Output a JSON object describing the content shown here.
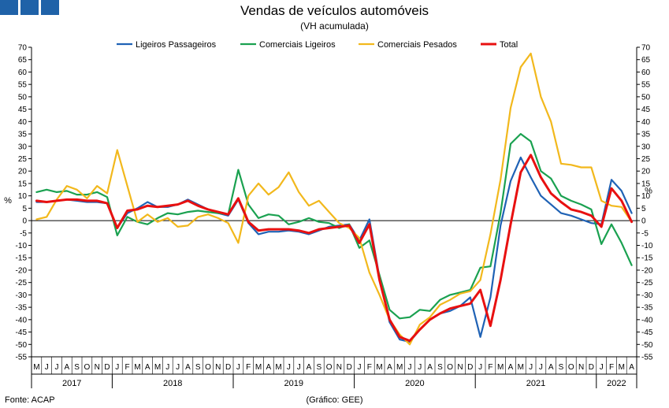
{
  "header": {
    "title": "Vendas de veículos automóveis",
    "subtitle": "(VH acumulada)"
  },
  "footer": {
    "source": "Fonte: ACAP",
    "credit": "(Gráfico: GEE)"
  },
  "chart_data": {
    "type": "line",
    "title": "Vendas de veículos automóveis",
    "subtitle": "(VH acumulada)",
    "ylabel": "%",
    "ylim": [
      -55,
      70
    ],
    "ytick_step": 5,
    "grid": false,
    "legend_position": "top-center",
    "x": [
      "M",
      "J",
      "J",
      "A",
      "S",
      "O",
      "N",
      "D",
      "J",
      "F",
      "M",
      "A",
      "M",
      "J",
      "J",
      "A",
      "S",
      "O",
      "N",
      "D",
      "J",
      "F",
      "M",
      "A",
      "M",
      "J",
      "J",
      "A",
      "S",
      "O",
      "N",
      "D",
      "J",
      "F",
      "M",
      "A",
      "M",
      "J",
      "J",
      "A",
      "S",
      "O",
      "N",
      "D",
      "J",
      "F",
      "M",
      "A",
      "M",
      "J",
      "J",
      "A",
      "S",
      "O",
      "N",
      "D",
      "J",
      "F",
      "M",
      "A"
    ],
    "years": [
      {
        "label": "2017",
        "start": 0,
        "count": 8
      },
      {
        "label": "2018",
        "start": 8,
        "count": 12
      },
      {
        "label": "2019",
        "start": 20,
        "count": 12
      },
      {
        "label": "2020",
        "start": 32,
        "count": 12
      },
      {
        "label": "2021",
        "start": 44,
        "count": 12
      },
      {
        "label": "2022",
        "start": 56,
        "count": 4
      }
    ],
    "series": [
      {
        "name": "Ligeiros Passageiros",
        "color": "#1f62b5",
        "values": [
          7.5,
          7.5,
          8.0,
          8.5,
          8.0,
          7.5,
          7.5,
          7.0,
          -3.0,
          3.0,
          5.0,
          7.5,
          5.5,
          5.5,
          6.5,
          8.5,
          6.5,
          4.5,
          3.0,
          2.0,
          8.5,
          -1.0,
          -5.5,
          -4.5,
          -4.5,
          -4.0,
          -4.5,
          -5.5,
          -4.0,
          -2.5,
          -2.0,
          -1.5,
          -8.0,
          0.5,
          -23.0,
          -41.0,
          -48.0,
          -49.0,
          -44.0,
          -40.0,
          -37.5,
          -36.5,
          -34.5,
          -31.0,
          -47.0,
          -31.0,
          -2.0,
          16.0,
          25.5,
          17.5,
          10.0,
          6.5,
          3.0,
          2.0,
          0.5,
          -1.0,
          -1.5,
          16.5,
          12.0,
          3.0
        ]
      },
      {
        "name": "Comerciais Ligeiros",
        "color": "#1aa150",
        "values": [
          11.5,
          12.5,
          11.5,
          12.0,
          10.5,
          10.5,
          11.5,
          9.5,
          -6.0,
          1.5,
          -0.5,
          -1.5,
          1.0,
          3.0,
          2.5,
          3.5,
          4.0,
          3.5,
          3.0,
          2.5,
          20.5,
          6.5,
          1.0,
          2.5,
          2.0,
          -1.5,
          -0.5,
          1.0,
          -0.5,
          -1.0,
          -3.0,
          -1.5,
          -11.0,
          -8.0,
          -22.0,
          -36.0,
          -39.5,
          -39.0,
          -36.0,
          -36.5,
          -32.0,
          -30.0,
          -29.0,
          -28.0,
          -19.0,
          -18.5,
          3.0,
          31.0,
          35.0,
          32.0,
          20.0,
          17.0,
          10.0,
          8.0,
          6.5,
          4.5,
          -9.5,
          -1.5,
          -9.0,
          -18.0
        ]
      },
      {
        "name": "Comerciais Pesados",
        "color": "#f2b81c",
        "values": [
          0.5,
          1.5,
          8.5,
          14.0,
          12.5,
          9.0,
          14.0,
          11.0,
          28.5,
          14.0,
          -0.5,
          2.5,
          -0.5,
          1.0,
          -2.5,
          -2.0,
          1.5,
          2.5,
          1.0,
          -1.0,
          -9.0,
          10.0,
          15.0,
          10.5,
          13.5,
          19.5,
          11.5,
          6.0,
          8.0,
          3.5,
          -1.0,
          -3.0,
          -7.0,
          -21.0,
          -30.0,
          -40.0,
          -46.0,
          -50.0,
          -42.0,
          -39.0,
          -34.0,
          -32.0,
          -29.5,
          -28.5,
          -24.0,
          -5.5,
          16.5,
          45.5,
          62.0,
          67.5,
          50.0,
          40.0,
          23.0,
          22.5,
          21.5,
          21.5,
          8.0,
          6.0,
          5.5,
          -0.5
        ]
      },
      {
        "name": "Total",
        "color": "#e81010",
        "values": [
          8.0,
          7.5,
          8.0,
          8.5,
          8.5,
          8.0,
          8.0,
          7.0,
          -3.0,
          4.0,
          4.5,
          6.0,
          5.5,
          6.0,
          6.5,
          8.0,
          6.0,
          4.5,
          3.5,
          2.5,
          9.0,
          -0.5,
          -4.0,
          -3.5,
          -3.5,
          -3.5,
          -4.0,
          -5.0,
          -3.5,
          -3.0,
          -2.5,
          -2.0,
          -9.0,
          -1.5,
          -24.0,
          -40.0,
          -47.0,
          -48.5,
          -44.0,
          -40.0,
          -37.5,
          -35.5,
          -34.5,
          -33.5,
          -28.0,
          -42.5,
          -24.0,
          -1.5,
          19.5,
          26.5,
          17.5,
          11.0,
          7.5,
          4.5,
          3.5,
          2.0,
          -2.5,
          13.0,
          8.0,
          -0.5
        ]
      }
    ]
  }
}
